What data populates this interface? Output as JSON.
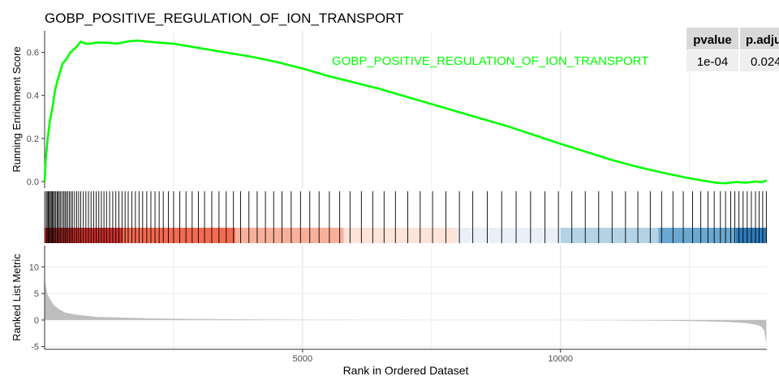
{
  "chart_data": {
    "type": "line",
    "title": "GOBP_POSITIVE_REGULATION_OF_ION_TRANSPORT",
    "xlabel": "Rank in Ordered Dataset",
    "xlim": [
      0,
      14000
    ],
    "x_ticks": [
      "5000",
      "10000"
    ],
    "x_tick_values": [
      5000,
      10000
    ],
    "x_minor_gridlines": [
      2500,
      7500,
      12500
    ],
    "grid": true,
    "panels": {
      "running_score": {
        "ylabel": "Running Enrichment Score",
        "ylim": [
          -0.03,
          0.7
        ],
        "y_ticks": [
          "0.0",
          "0.2",
          "0.4",
          "0.6"
        ],
        "y_tick_values": [
          0.0,
          0.2,
          0.4,
          0.6
        ],
        "series": [
          {
            "name": "GOBP_POSITIVE_REGULATION_OF_ION_TRANSPORT",
            "color": "#00ff00",
            "x": [
              0,
              20,
              60,
              100,
              150,
              200,
              250,
              300,
              350,
              400,
              450,
              500,
              600,
              700,
              800,
              900,
              1000,
              1200,
              1400,
              1600,
              1800,
              2000,
              2200,
              2500,
              3000,
              3500,
              4000,
              4500,
              5000,
              5500,
              6000,
              6500,
              7000,
              7500,
              8000,
              8500,
              9000,
              9500,
              10000,
              10500,
              11000,
              11500,
              12000,
              12500,
              13000,
              13200,
              13400,
              13600,
              13800,
              13900,
              14000
            ],
            "y": [
              0.0,
              0.1,
              0.2,
              0.28,
              0.34,
              0.42,
              0.47,
              0.51,
              0.55,
              0.56,
              0.58,
              0.6,
              0.62,
              0.65,
              0.64,
              0.64,
              0.645,
              0.645,
              0.64,
              0.65,
              0.655,
              0.65,
              0.645,
              0.64,
              0.62,
              0.6,
              0.58,
              0.555,
              0.525,
              0.49,
              0.46,
              0.43,
              0.395,
              0.36,
              0.325,
              0.29,
              0.255,
              0.215,
              0.175,
              0.138,
              0.1,
              0.068,
              0.04,
              0.015,
              -0.005,
              -0.008,
              -0.002,
              -0.005,
              0.0,
              -0.003,
              0.005
            ]
          }
        ],
        "legend_placement": "top-right"
      },
      "hits": {
        "hit_ranks": [
          30,
          50,
          70,
          90,
          110,
          130,
          150,
          170,
          190,
          215,
          240,
          260,
          285,
          310,
          340,
          370,
          395,
          420,
          450,
          480,
          510,
          540,
          580,
          620,
          660,
          700,
          750,
          800,
          850,
          900,
          950,
          1000,
          1050,
          1100,
          1150,
          1200,
          1260,
          1320,
          1380,
          1440,
          1500,
          1560,
          1620,
          1690,
          1760,
          1830,
          1900,
          1980,
          2060,
          2140,
          2220,
          2300,
          2400,
          2500,
          2620,
          2740,
          2860,
          2980,
          3100,
          3240,
          3380,
          3520,
          3660,
          3800,
          3960,
          4120,
          4280,
          4440,
          4600,
          4780,
          4960,
          5140,
          5320,
          5520,
          5720,
          5920,
          6140,
          6360,
          6580,
          6800,
          7040,
          7280,
          7520,
          7780,
          8040,
          8300,
          8580,
          8860,
          9140,
          9420,
          9700,
          9960,
          10220,
          10480,
          10740,
          11000,
          11260,
          11500,
          11740,
          11960,
          12180,
          12380,
          12560,
          12720,
          12860,
          12980,
          13100,
          13200,
          13300,
          13380,
          13460,
          13540,
          13620,
          13700,
          13780,
          13850,
          13920,
          13990
        ],
        "colorbar": [
          {
            "from": 0,
            "to": 1500,
            "color": "#d0302c"
          },
          {
            "from": 1500,
            "to": 3700,
            "color": "#f26a50"
          },
          {
            "from": 3700,
            "to": 5800,
            "color": "#f9b09a"
          },
          {
            "from": 5800,
            "to": 8000,
            "color": "#fde3d8"
          },
          {
            "from": 8000,
            "to": 10000,
            "color": "#eaf0f8"
          },
          {
            "from": 10000,
            "to": 11900,
            "color": "#b4d2e6"
          },
          {
            "from": 11900,
            "to": 13400,
            "color": "#6aa8d1"
          },
          {
            "from": 13400,
            "to": 14000,
            "color": "#2f7ab9"
          }
        ]
      },
      "ranked_metric": {
        "ylabel": "Ranked List Metric",
        "ylim": [
          -5.5,
          14
        ],
        "y_ticks": [
          "-5",
          "0",
          "5",
          "10"
        ],
        "y_tick_values": [
          -5,
          0,
          5,
          10
        ],
        "fill_color": "#bebebe",
        "x": [
          0,
          20,
          50,
          100,
          150,
          200,
          300,
          400,
          600,
          800,
          1000,
          1500,
          2000,
          3000,
          4000,
          5000,
          6000,
          7000,
          8000,
          8900,
          9100,
          9700,
          10000,
          11000,
          12000,
          12800,
          13300,
          13600,
          13800,
          13900,
          13950,
          13990
        ],
        "y": [
          8.0,
          6.5,
          5.0,
          4.0,
          3.2,
          2.6,
          1.9,
          1.4,
          1.0,
          0.8,
          0.6,
          0.45,
          0.33,
          0.2,
          0.12,
          0.06,
          0.03,
          0.01,
          0.0,
          0.0,
          0.0,
          0.0,
          -0.02,
          -0.06,
          -0.12,
          -0.25,
          -0.4,
          -0.6,
          -0.9,
          -1.3,
          -2.0,
          -4.5
        ]
      }
    },
    "table": {
      "columns": [
        "pvalue",
        "p.adju"
      ],
      "values": [
        "1e-04",
        "0.024"
      ]
    }
  }
}
